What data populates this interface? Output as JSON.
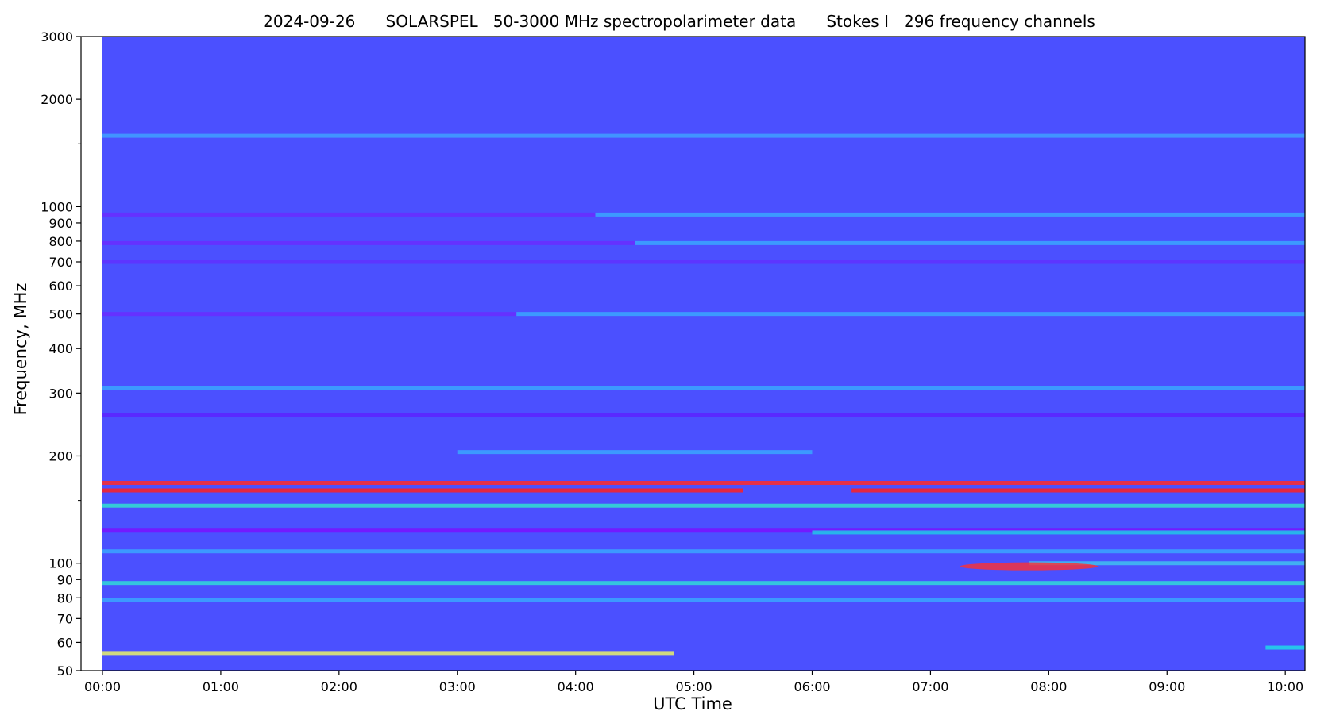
{
  "chart_data": {
    "type": "heatmap",
    "title": "2024-09-26      SOLARSPEL   50-3000 MHz spectropolarimeter data      Stokes I   296 frequency channels",
    "xlabel": "UTC Time",
    "ylabel": "Frequency, MHz",
    "x_range": [
      "00:00",
      "10:10"
    ],
    "x_ticks": [
      "00:00",
      "01:00",
      "02:00",
      "03:00",
      "04:00",
      "05:00",
      "06:00",
      "07:00",
      "08:00",
      "09:00",
      "10:00"
    ],
    "y_scale": "log",
    "y_range": [
      50,
      3000
    ],
    "y_ticks": [
      {
        "value": 50,
        "label": "50"
      },
      {
        "value": 60,
        "label": "60"
      },
      {
        "value": 70,
        "label": "70"
      },
      {
        "value": 80,
        "label": "80"
      },
      {
        "value": 90,
        "label": "90"
      },
      {
        "value": 100,
        "label": "100"
      },
      {
        "value": 200,
        "label": "200"
      },
      {
        "value": 300,
        "label": "300"
      },
      {
        "value": 400,
        "label": "400"
      },
      {
        "value": 500,
        "label": "500"
      },
      {
        "value": 600,
        "label": "600"
      },
      {
        "value": 700,
        "label": "700"
      },
      {
        "value": 800,
        "label": "800"
      },
      {
        "value": 900,
        "label": "900"
      },
      {
        "value": 1000,
        "label": "1000"
      },
      {
        "value": 2000,
        "label": "2000"
      },
      {
        "value": 3000,
        "label": "3000"
      }
    ],
    "y_minor_ticks": [
      150,
      1500
    ],
    "colormap": "rainbow",
    "background_color": "#4b50ff",
    "features": [
      {
        "kind": "band",
        "freq": 1580,
        "t_start": "00:00",
        "t_end": "10:10",
        "color": "#3fa0ff"
      },
      {
        "kind": "band",
        "freq": 950,
        "t_start": "00:00",
        "t_end": "04:10",
        "color": "#6a2bff"
      },
      {
        "kind": "band",
        "freq": 950,
        "t_start": "04:10",
        "t_end": "10:10",
        "color": "#3aa6ff"
      },
      {
        "kind": "band",
        "freq": 790,
        "t_start": "00:00",
        "t_end": "04:30",
        "color": "#6a2bff"
      },
      {
        "kind": "band",
        "freq": 790,
        "t_start": "04:30",
        "t_end": "10:10",
        "color": "#3aa6ff"
      },
      {
        "kind": "band",
        "freq": 700,
        "t_start": "00:00",
        "t_end": "10:10",
        "color": "#6030ff"
      },
      {
        "kind": "band",
        "freq": 500,
        "t_start": "00:00",
        "t_end": "03:30",
        "color": "#6a2bff"
      },
      {
        "kind": "band",
        "freq": 500,
        "t_start": "03:30",
        "t_end": "10:10",
        "color": "#3aa6ff"
      },
      {
        "kind": "band",
        "freq": 310,
        "t_start": "00:00",
        "t_end": "10:10",
        "color": "#3aa6ff"
      },
      {
        "kind": "band",
        "freq": 260,
        "t_start": "00:00",
        "t_end": "10:10",
        "color": "#5d22ff"
      },
      {
        "kind": "band",
        "freq": 205,
        "t_start": "03:00",
        "t_end": "06:00",
        "color": "#3aa6ff"
      },
      {
        "kind": "band",
        "freq": 168,
        "t_start": "00:00",
        "t_end": "10:10",
        "color": "#ff2a2a"
      },
      {
        "kind": "band",
        "freq": 160,
        "t_start": "00:00",
        "t_end": "05:25",
        "color": "#ff2020"
      },
      {
        "kind": "band",
        "freq": 160,
        "t_start": "06:20",
        "t_end": "10:10",
        "color": "#ff2020"
      },
      {
        "kind": "band",
        "freq": 145,
        "t_start": "00:00",
        "t_end": "10:10",
        "color": "#30e0d0"
      },
      {
        "kind": "band",
        "freq": 124,
        "t_start": "00:00",
        "t_end": "10:10",
        "color": "#7a10ff"
      },
      {
        "kind": "band",
        "freq": 122,
        "t_start": "06:00",
        "t_end": "10:10",
        "color": "#20c8e8"
      },
      {
        "kind": "band",
        "freq": 108,
        "t_start": "00:00",
        "t_end": "10:10",
        "color": "#3aa6ff"
      },
      {
        "kind": "band",
        "freq": 100,
        "t_start": "07:50",
        "t_end": "10:10",
        "color": "#40c0f0"
      },
      {
        "kind": "burst",
        "freq": 98,
        "t_start": "07:15",
        "t_end": "08:25",
        "color": "#ff3030"
      },
      {
        "kind": "band",
        "freq": 88,
        "t_start": "00:00",
        "t_end": "10:10",
        "color": "#30d8d8"
      },
      {
        "kind": "band",
        "freq": 79,
        "t_start": "00:00",
        "t_end": "10:10",
        "color": "#3aa6ff"
      },
      {
        "kind": "band",
        "freq": 56,
        "t_start": "00:00",
        "t_end": "04:50",
        "color": "#e8f06a"
      },
      {
        "kind": "band",
        "freq": 58,
        "t_start": "09:50",
        "t_end": "10:10",
        "color": "#20d8e8"
      }
    ]
  }
}
